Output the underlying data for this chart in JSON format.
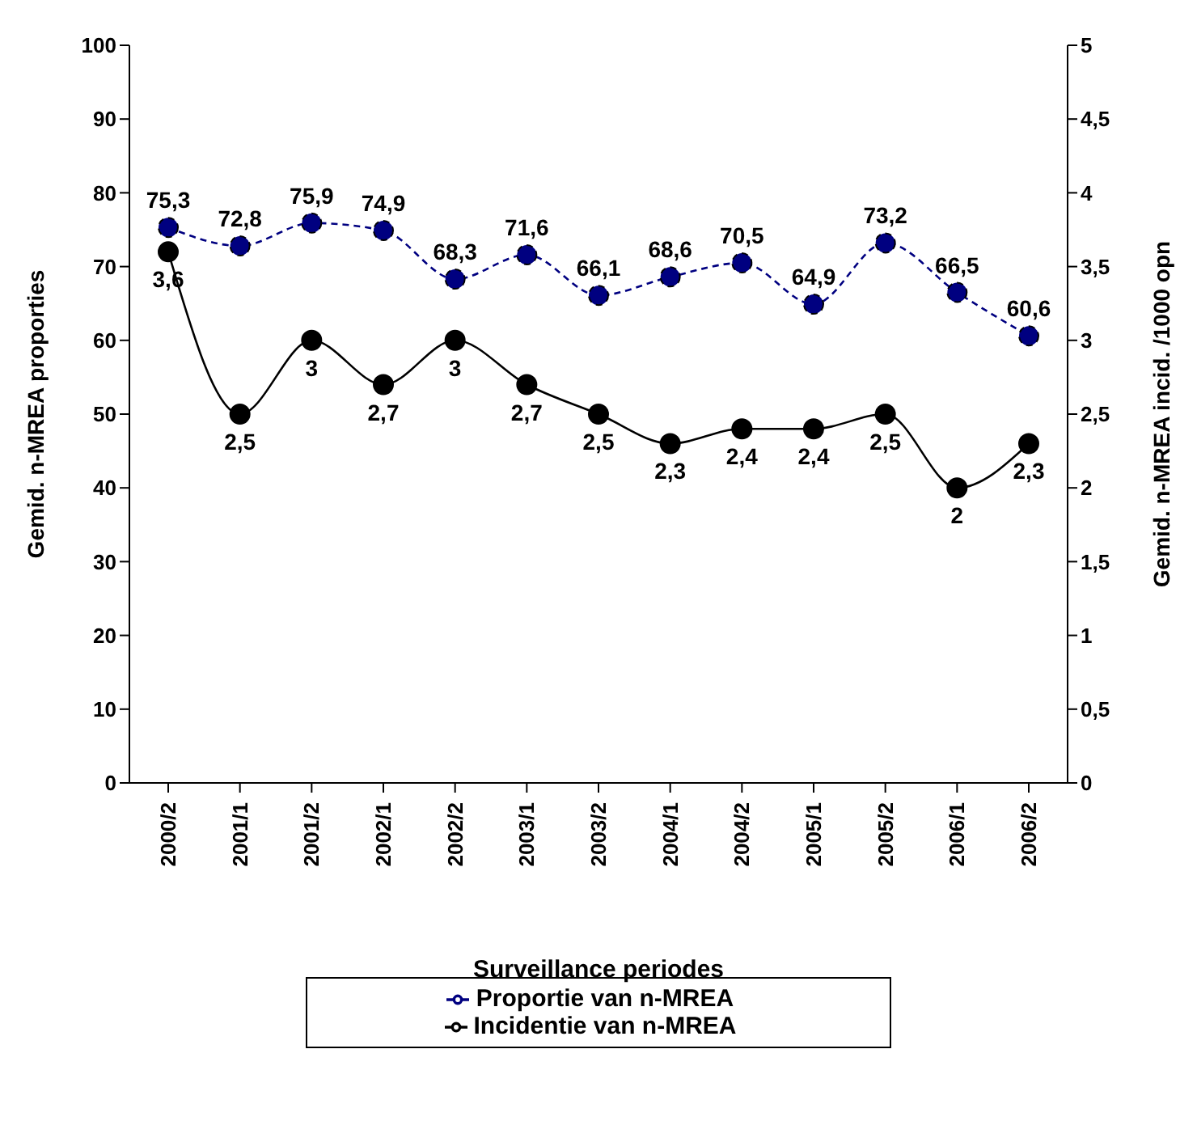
{
  "chart_data": {
    "type": "line",
    "xlabel": "Surveillance periodes",
    "ylabel": "Gemid. n-MREA proporties",
    "y2label": "Gemid. n-MREA incid. /1000 opn",
    "categories": [
      "2000/2",
      "2001/1",
      "2001/2",
      "2002/1",
      "2002/2",
      "2003/1",
      "2003/2",
      "2004/1",
      "2004/2",
      "2005/1",
      "2005/2",
      "2006/1",
      "2006/2"
    ],
    "series": [
      {
        "name": "Proportie van n-MREA",
        "color": "#000080",
        "line_style": "dashed",
        "values": [
          75.3,
          72.8,
          75.9,
          74.9,
          68.3,
          71.6,
          66.1,
          68.6,
          70.5,
          64.9,
          73.2,
          66.5,
          60.6
        ],
        "value_labels": [
          "75,3",
          "72,8",
          "75,9",
          "74,9",
          "68,3",
          "71,6",
          "66,1",
          "68,6",
          "70,5",
          "64,9",
          "73,2",
          "66,5",
          "60,6"
        ]
      },
      {
        "name": "Incidentie van n-MREA",
        "color": "#000000",
        "line_style": "solid",
        "axis": "y2",
        "values": [
          3.6,
          2.5,
          3,
          2.7,
          3,
          2.7,
          2.5,
          2.3,
          2.4,
          2.4,
          2.5,
          2,
          2.3
        ],
        "value_labels": [
          "3,6",
          "2,5",
          "3",
          "2,7",
          "3",
          "2,7",
          "2,5",
          "2,3",
          "2,4",
          "2,4",
          "2,5",
          "2",
          "2,3"
        ]
      }
    ],
    "ylim": [
      0,
      100
    ],
    "yticks": [
      0,
      10,
      20,
      30,
      40,
      50,
      60,
      70,
      80,
      90,
      100
    ],
    "y2lim": [
      0,
      5
    ],
    "y2ticks": [
      0,
      {
        "value": 0.5,
        "label": "0,5"
      },
      1,
      {
        "value": 1.5,
        "label": "1,5"
      },
      2,
      {
        "value": 2.5,
        "label": "2,5"
      },
      3,
      {
        "value": 3.5,
        "label": "3,5"
      },
      4,
      {
        "value": 4.5,
        "label": "4,5"
      },
      5
    ],
    "marker": "circle",
    "grid": false,
    "legend": "bottom"
  }
}
